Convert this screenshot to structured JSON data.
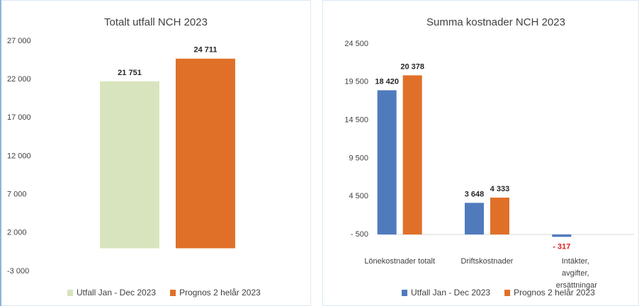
{
  "chart_data": [
    {
      "type": "bar",
      "title": "Totalt utfall NCH 2023",
      "series": [
        {
          "name": "Utfall Jan - Dec 2023",
          "color": "#d7e4bd",
          "values": [
            21751
          ],
          "value_labels": [
            "21 751"
          ]
        },
        {
          "name": "Prognos 2 helår 2023",
          "color": "#e07028",
          "values": [
            24711
          ],
          "value_labels": [
            "24 711"
          ]
        }
      ],
      "ylim": [
        -3000,
        27000
      ],
      "yticks": [
        {
          "value": -3000,
          "label": "-3 000"
        },
        {
          "value": 2000,
          "label": "2 000"
        },
        {
          "value": 7000,
          "label": "7 000"
        },
        {
          "value": 12000,
          "label": "12 000"
        },
        {
          "value": 17000,
          "label": "17 000"
        },
        {
          "value": 22000,
          "label": "22 000"
        },
        {
          "value": 27000,
          "label": "27 000"
        }
      ],
      "legend": "bottom"
    },
    {
      "type": "bar",
      "title": "Summa kostnader NCH 2023",
      "categories": [
        "Lönekostnader totalt",
        "Driftskostnader",
        "Intäkter, avgifter, ersättningar"
      ],
      "series": [
        {
          "name": "Utfall Jan - Dec 2023",
          "color": "#4f7bbd",
          "values": [
            18420,
            3648,
            -317
          ],
          "value_labels": [
            "18 420",
            "3 648",
            "- 317"
          ]
        },
        {
          "name": "Prognos 2 helår 2023",
          "color": "#e07028",
          "values": [
            20378,
            4333,
            null
          ],
          "value_labels": [
            "20 378",
            "4 333",
            null
          ]
        }
      ],
      "ylim": [
        -500,
        24500
      ],
      "yticks": [
        {
          "value": -500,
          "label": "- 500"
        },
        {
          "value": 4500,
          "label": "4 500"
        },
        {
          "value": 9500,
          "label": "9 500"
        },
        {
          "value": 14500,
          "label": "14 500"
        },
        {
          "value": 19500,
          "label": "19 500"
        },
        {
          "value": 24500,
          "label": "24 500"
        }
      ],
      "legend": "bottom"
    }
  ]
}
